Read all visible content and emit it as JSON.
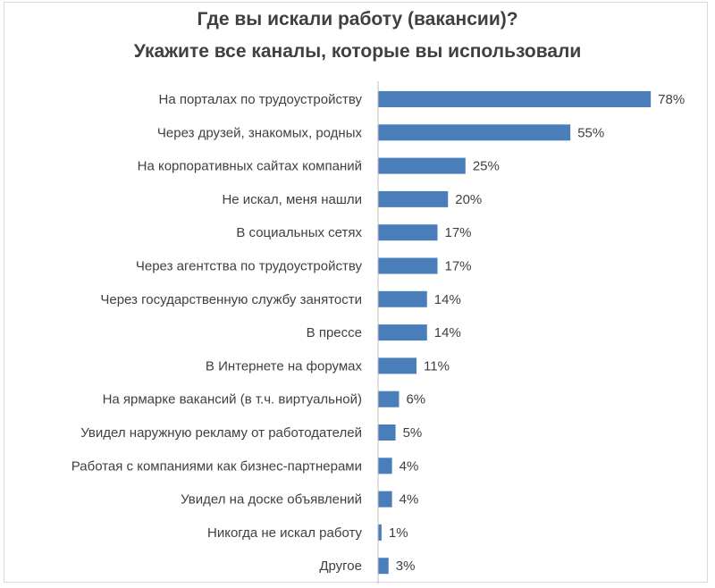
{
  "chart_data": {
    "type": "bar",
    "orientation": "horizontal",
    "title": "Где вы искали работу (вакансии)?",
    "subtitle": "Укажите все каналы, которые вы использовали",
    "categories": [
      "На порталах по трудоустройству",
      "Через друзей, знакомых, родных",
      "На корпоративных сайтах компаний",
      "Не искал, меня нашли",
      "В социальных сетях",
      "Через агентства по трудоустройству",
      "Через государственную службу занятости",
      "В прессе",
      "В Интернете  на форумах",
      "На ярмарке вакансий  (в т.ч. виртуальной)",
      "Увидел наружную рекламу от работодателей",
      "Работая с компаниями как бизнес-партнерами",
      "Увидел на доске объявлений",
      "Никогда не искал работу",
      "Другое"
    ],
    "values": [
      78,
      55,
      25,
      20,
      17,
      17,
      14,
      14,
      11,
      6,
      5,
      4,
      4,
      1,
      3
    ],
    "value_labels": [
      "78%",
      "55%",
      "25%",
      "20%",
      "17%",
      "17%",
      "14%",
      "14%",
      "11%",
      "6%",
      "5%",
      "4%",
      "4%",
      "1%",
      "3%"
    ],
    "unit": "%",
    "xlim": [
      0,
      80
    ],
    "grid": false,
    "legend": "none",
    "bar_color": "#4a7ebb"
  }
}
